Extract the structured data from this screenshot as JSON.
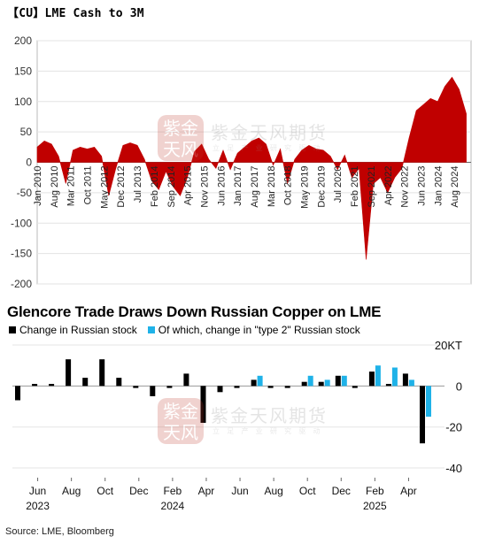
{
  "top": {
    "title": "【CU】LME Cash to 3M",
    "chart_data": {
      "type": "area",
      "title": "【CU】LME Cash to 3M",
      "ylim": [
        -200,
        200
      ],
      "yticks": [
        200,
        150,
        100,
        50,
        0,
        -50,
        -100,
        -150,
        -200
      ],
      "xtick_labels": [
        "Jan 2010",
        "Aug 2010",
        "Mar 2011",
        "Oct 2011",
        "May 2012",
        "Dec 2012",
        "Jul 2013",
        "Feb 2014",
        "Sep 2014",
        "Apr 2015",
        "Nov 2015",
        "Jun 2016",
        "Jan 2017",
        "Aug 2017",
        "Mar 2018",
        "Oct 2018",
        "May 2019",
        "Dec 2019",
        "Jul 2020",
        "Feb 2021",
        "Sep 2021",
        "Apr 2022",
        "Nov 2022",
        "Jun 2023",
        "Jan 2024",
        "Aug 2024"
      ],
      "x": [
        "2010-01",
        "2010-04",
        "2010-07",
        "2010-10",
        "2011-01",
        "2011-04",
        "2011-07",
        "2011-10",
        "2012-01",
        "2012-04",
        "2012-07",
        "2012-10",
        "2013-01",
        "2013-04",
        "2013-07",
        "2013-10",
        "2014-01",
        "2014-04",
        "2014-07",
        "2014-10",
        "2015-01",
        "2015-04",
        "2015-07",
        "2015-10",
        "2016-01",
        "2016-04",
        "2016-07",
        "2016-10",
        "2017-01",
        "2017-04",
        "2017-07",
        "2017-10",
        "2018-01",
        "2018-04",
        "2018-07",
        "2018-10",
        "2019-01",
        "2019-04",
        "2019-07",
        "2019-10",
        "2020-01",
        "2020-04",
        "2020-07",
        "2020-10",
        "2021-01",
        "2021-04",
        "2021-07",
        "2021-10",
        "2022-01",
        "2022-04",
        "2022-07",
        "2022-10",
        "2023-01",
        "2023-04",
        "2023-07",
        "2023-10",
        "2024-01",
        "2024-04",
        "2024-07",
        "2024-10",
        "2025-01"
      ],
      "values": [
        25,
        35,
        30,
        10,
        -35,
        20,
        25,
        22,
        25,
        10,
        -55,
        -10,
        28,
        32,
        28,
        5,
        -30,
        -45,
        -15,
        -40,
        -55,
        -25,
        18,
        30,
        5,
        -10,
        20,
        -12,
        15,
        25,
        35,
        40,
        30,
        -5,
        22,
        -35,
        5,
        20,
        28,
        22,
        20,
        10,
        -12,
        12,
        -25,
        -10,
        -160,
        -35,
        -25,
        -50,
        -25,
        -10,
        40,
        85,
        95,
        105,
        100,
        125,
        140,
        120,
        80
      ]
    }
  },
  "bottom": {
    "title": "Glencore Trade Draws Down Russian Copper on LME",
    "legend": {
      "black_label": "Change in Russian stock",
      "blue_label": "Of which, change in \"type 2\" Russian stock"
    },
    "source": "Source: LME, Bloomberg",
    "chart_data": {
      "type": "bar",
      "y_unit_label": "20KT",
      "yticks": [
        20,
        0,
        -20,
        -40
      ],
      "ytick_labels": [
        "20KT",
        "0",
        "-20",
        "-40"
      ],
      "ylim": [
        -43,
        20
      ],
      "categories": [
        "2023-05",
        "2023-06",
        "2023-07",
        "2023-08",
        "2023-09",
        "2023-10",
        "2023-11",
        "2023-12",
        "2024-01",
        "2024-02",
        "2024-03",
        "2024-04",
        "2024-05",
        "2024-06",
        "2024-07",
        "2024-08",
        "2024-09",
        "2024-10",
        "2024-11",
        "2024-12",
        "2025-01",
        "2025-02",
        "2025-03",
        "2025-04",
        "2025-05"
      ],
      "x_month_labels": [
        [
          "Jun",
          "2023-06"
        ],
        [
          "Aug",
          "2023-08"
        ],
        [
          "Oct",
          "2023-10"
        ],
        [
          "Dec",
          "2023-12"
        ],
        [
          "Feb",
          "2024-02"
        ],
        [
          "Apr",
          "2024-04"
        ],
        [
          "Jun",
          "2024-06"
        ],
        [
          "Aug",
          "2024-08"
        ],
        [
          "Oct",
          "2024-10"
        ],
        [
          "Dec",
          "2024-12"
        ],
        [
          "Feb",
          "2025-02"
        ],
        [
          "Apr",
          "2025-04"
        ]
      ],
      "x_year_labels": [
        [
          "2023",
          "2023-06"
        ],
        [
          "2024",
          "2024-02"
        ],
        [
          "2025",
          "2025-02"
        ]
      ],
      "series": [
        {
          "name": "Change in Russian stock",
          "color": "#000000",
          "values": [
            -7,
            1,
            1,
            13,
            4,
            13,
            4,
            -1,
            -5,
            -1,
            6,
            -18,
            -3,
            -1,
            3,
            -1,
            -1,
            2,
            2,
            5,
            -1,
            7,
            1,
            6,
            -28
          ]
        },
        {
          "name": "Of which, change in \"type 2\" Russian stock",
          "color": "#1fb2e8",
          "values": [
            0,
            0,
            0,
            0,
            0,
            0,
            0,
            0,
            0,
            0,
            0,
            0,
            0,
            0,
            5,
            0,
            0,
            5,
            3,
            5,
            0,
            10,
            9,
            3,
            -15
          ]
        }
      ]
    }
  },
  "colors": {
    "area_fill": "#c00000",
    "grid": "#e3e3e3",
    "axis": "#444444",
    "blue": "#1fb2e8"
  },
  "watermark": {
    "seal_text": "紫金天风",
    "text": "紫金天风期货",
    "sub": "立 足 产 业  研 究 驱 动"
  }
}
